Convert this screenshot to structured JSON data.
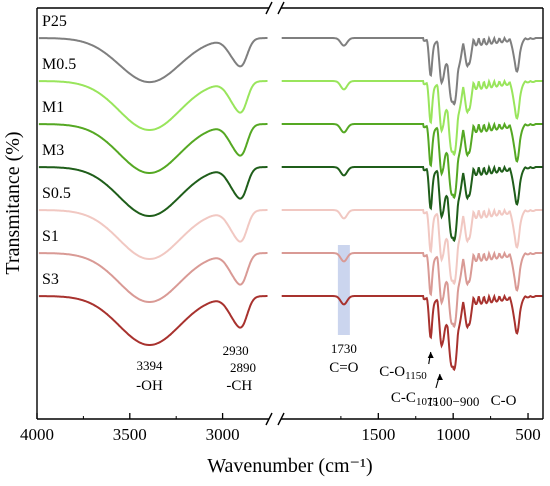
{
  "chart_data": {
    "type": "line",
    "xlabel": "Wavenumber (cm⁻¹)",
    "ylabel": "Transmitance (%)",
    "xlim": [
      4000,
      400
    ],
    "axis_break": [
      2750,
      2150
    ],
    "xticks": [
      4000,
      3500,
      3000,
      1500,
      1000,
      500
    ],
    "xtick_labels": [
      "4000",
      "3500",
      "3000",
      "1500",
      "1000",
      "500"
    ],
    "y_ticks_shown": false,
    "legend": "inline series labels at left",
    "series": [
      {
        "name": "P25",
        "color": "#7f7f7f"
      },
      {
        "name": "M0.5",
        "color": "#99e55c"
      },
      {
        "name": "M1",
        "color": "#55a823"
      },
      {
        "name": "M3",
        "color": "#1f5e1a"
      },
      {
        "name": "S0.5",
        "color": "#f1c8c2"
      },
      {
        "name": "S1",
        "color": "#d99a95"
      },
      {
        "name": "S3",
        "color": "#a8322e"
      }
    ],
    "band_features": [
      {
        "x": 3394,
        "relative_transmittance": 0.3,
        "width": 230
      },
      {
        "x": 2930,
        "relative_transmittance": 0.7,
        "width": 60
      },
      {
        "x": 2890,
        "relative_transmittance": 0.78,
        "width": 40
      },
      {
        "x": 1730,
        "relative_transmittance": 0.88,
        "width": 30
      },
      {
        "x": 1150,
        "relative_transmittance": 0.45,
        "width": 15
      },
      {
        "x": 1075,
        "relative_transmittance": 0.35,
        "width": 20
      },
      {
        "x": 1000,
        "relative_transmittance": 0.0,
        "width": 40
      },
      {
        "x": 900,
        "relative_transmittance": 0.6,
        "width": 20
      },
      {
        "x": 575,
        "relative_transmittance": 0.5,
        "width": 25
      }
    ],
    "highlight_band": {
      "x_range": [
        1770,
        1690
      ],
      "color": "#c5d0ec"
    },
    "annotations": [
      {
        "text": "3394",
        "x": 3394
      },
      {
        "text": "-OH",
        "x": 3394
      },
      {
        "text": "2930",
        "x": 2930
      },
      {
        "text": "2890",
        "x": 2890
      },
      {
        "text": "-CH",
        "x": 2910
      },
      {
        "text": "1730",
        "x": 1730
      },
      {
        "text": "C=O",
        "x": 1730
      },
      {
        "text": "C-O",
        "sub": "1150",
        "x": 1150
      },
      {
        "text": "C-C",
        "sub": "1075",
        "x": 1075
      },
      {
        "text": "1100−900",
        "x": 1000
      },
      {
        "text": "C-O",
        "x": 830
      }
    ]
  }
}
